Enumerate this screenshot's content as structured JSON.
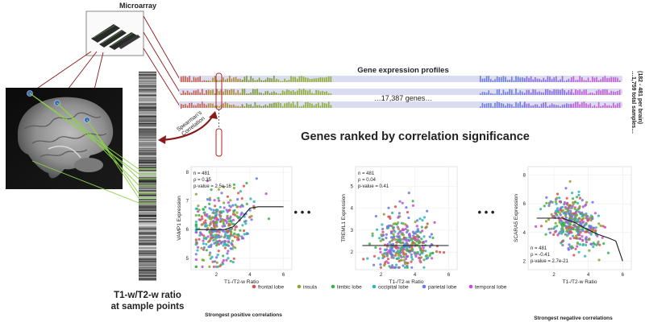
{
  "title": {
    "microarray": "Microarray",
    "profiles": "Gene expression profiles",
    "genes": "…17,387 genes…",
    "ranked": "Genes ranked by correlation significance",
    "spearman_line1": "Spearman's",
    "spearman_line2": "Correlation",
    "t1t2_line1": "T1-w/T2-w ratio",
    "t1t2_line2": "at sample points",
    "samples_line1": "…1,759 total samples…",
    "samples_line2": "(182 - 481 per brain)",
    "positive": "Strongest positive correlations",
    "negative": "Strongest negative correlations",
    "ellipsis": "• • •"
  },
  "legend": [
    {
      "label": "frontal lobe",
      "color": "#d9534f"
    },
    {
      "label": "insula",
      "color": "#8aa62e"
    },
    {
      "label": "limbic lobe",
      "color": "#3bb24b"
    },
    {
      "label": "occipital lobe",
      "color": "#2fb5b5"
    },
    {
      "label": "parietal lobe",
      "color": "#6b78e6"
    },
    {
      "label": "temporal lobe",
      "color": "#c24fd6"
    }
  ],
  "chart_data": [
    {
      "type": "scatter",
      "xlabel": "T1-/T2-w Ratio",
      "ylabel": "VAMP1 Expression",
      "xticks": [
        "2",
        "4",
        "6"
      ],
      "yticks": [
        "5",
        "6",
        "7",
        "8"
      ],
      "stats": [
        "n = 481",
        "ρ = 0.35",
        "p-value = 2.5e-16"
      ],
      "xlim": [
        0.5,
        6.5
      ],
      "ylim": [
        4.6,
        8.2
      ],
      "trend": [
        [
          0.8,
          6.0
        ],
        [
          2.5,
          6.0
        ],
        [
          3.0,
          6.1
        ],
        [
          3.5,
          6.4
        ],
        [
          4.0,
          6.75
        ],
        [
          4.5,
          6.8
        ],
        [
          6.0,
          6.8
        ]
      ]
    },
    {
      "type": "scatter",
      "xlabel": "T1-/T2-w Ratio",
      "ylabel": "TREML1 Expression",
      "xticks": [
        "2",
        "4",
        "6"
      ],
      "yticks": [
        "2",
        "3",
        "4",
        "5"
      ],
      "stats": [
        "n = 481",
        "ρ = 0.04",
        "p-value = 0.41"
      ],
      "xlim": [
        0.5,
        6.5
      ],
      "ylim": [
        1.2,
        5.9
      ],
      "trend": [
        [
          0.9,
          2.3
        ],
        [
          6.0,
          2.3
        ]
      ]
    },
    {
      "type": "scatter",
      "xlabel": "T1-/T2-w Ratio",
      "ylabel": "SCARA5 Expression",
      "xticks": [
        "2",
        "4",
        "6"
      ],
      "yticks": [
        "2",
        "4",
        "6",
        "8"
      ],
      "stats": [
        "n = 481",
        "ρ = -0.41",
        "p-value = 2.7e-21"
      ],
      "xlim": [
        0.5,
        6.5
      ],
      "ylim": [
        1.4,
        8.6
      ],
      "trend": [
        [
          1.0,
          5.0
        ],
        [
          2.5,
          5.0
        ],
        [
          3.2,
          4.7
        ],
        [
          3.8,
          4.3
        ],
        [
          4.5,
          3.9
        ],
        [
          5.2,
          3.6
        ],
        [
          5.6,
          3.4
        ],
        [
          6.0,
          2.0
        ]
      ]
    }
  ]
}
